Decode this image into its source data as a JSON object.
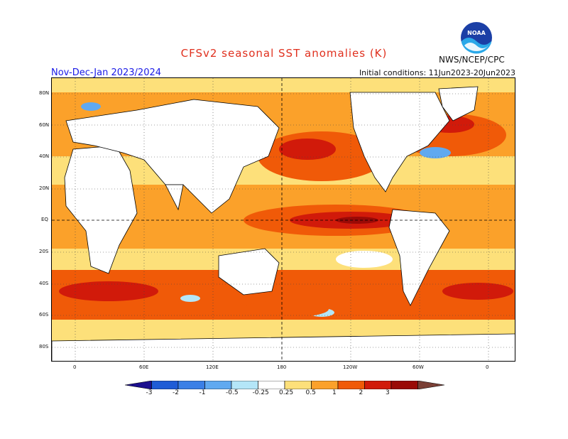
{
  "header": {
    "title": "CFSv2 seasonal SST anomalies (K)",
    "season": "Nov-Dec-Jan 2023/2024",
    "initial_conditions": "Initial conditions: 11Jun2023-20Jun2023",
    "agency": "NWS/NCEP/CPC",
    "logo_text": "NOAA"
  },
  "axes": {
    "lat_labels": [
      "80N",
      "60N",
      "40N",
      "20N",
      "EQ",
      "20S",
      "40S",
      "60S",
      "80S"
    ],
    "lon_labels": [
      "0",
      "60E",
      "120E",
      "180",
      "120W",
      "60W",
      "0"
    ]
  },
  "colorbar": {
    "ticks": [
      "-3",
      "-2",
      "-1",
      "-0.5",
      "-0.25",
      "0.25",
      "0.5",
      "1",
      "2",
      "3"
    ],
    "colors": [
      "#1c0f8e",
      "#1f5cd6",
      "#3a7fe6",
      "#60a9f0",
      "#b4e6f8",
      "#ffffff",
      "#fde07a",
      "#fba12a",
      "#f05a08",
      "#d11a0a",
      "#9a0a06",
      "#7a4036"
    ]
  }
}
